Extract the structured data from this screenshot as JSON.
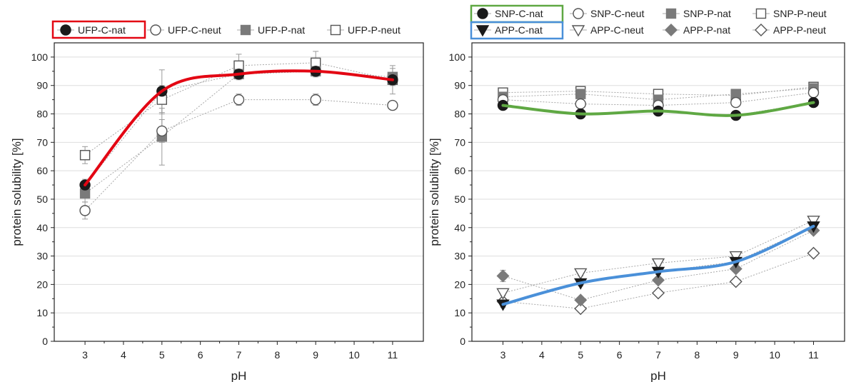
{
  "chart_data": [
    {
      "type": "line",
      "panel": "left",
      "xlabel": "pH",
      "ylabel": "protein solubility [%]",
      "xlim": [
        2.2,
        11.8
      ],
      "ylim": [
        0,
        105
      ],
      "xticks": [
        3,
        4,
        5,
        6,
        7,
        8,
        9,
        10,
        11
      ],
      "yticks": [
        0,
        10,
        20,
        30,
        40,
        50,
        60,
        70,
        80,
        90,
        100
      ],
      "grid": "horizontal",
      "legend_placement": "top",
      "x": [
        3,
        5,
        7,
        9,
        11
      ],
      "series": [
        {
          "name": "UFP-C-nat",
          "marker": "circle-filled",
          "color": "#1a1a1a",
          "highlight": "#e30613",
          "values": [
            55,
            88,
            94,
            95,
            92
          ],
          "errors": [
            2,
            7.5,
            1.5,
            1.5,
            2
          ]
        },
        {
          "name": "UFP-C-neut",
          "marker": "circle-open",
          "color": "#444444",
          "values": [
            46,
            74,
            85,
            85,
            83
          ],
          "errors": [
            3,
            4,
            2,
            2,
            1.5
          ]
        },
        {
          "name": "UFP-P-nat",
          "marker": "square-filled",
          "color": "#7a7a7a",
          "values": [
            52,
            72,
            94,
            95,
            93
          ],
          "errors": [
            3,
            10,
            2,
            2,
            3
          ]
        },
        {
          "name": "UFP-P-neut",
          "marker": "square-open",
          "color": "#9a9a9a",
          "values": [
            65.5,
            85,
            97,
            98,
            92
          ],
          "errors": [
            3,
            5,
            4,
            4,
            5
          ]
        }
      ],
      "highlight_curve": {
        "series": "UFP-C-nat",
        "color": "#e30613"
      }
    },
    {
      "type": "line",
      "panel": "right",
      "xlabel": "pH",
      "ylabel": "protein solubility [%]",
      "xlim": [
        2.2,
        11.8
      ],
      "ylim": [
        0,
        105
      ],
      "xticks": [
        3,
        4,
        5,
        6,
        7,
        8,
        9,
        10,
        11
      ],
      "yticks": [
        0,
        10,
        20,
        30,
        40,
        50,
        60,
        70,
        80,
        90,
        100
      ],
      "grid": "horizontal",
      "legend_placement": "top",
      "x": [
        3,
        5,
        7,
        9,
        11
      ],
      "series": [
        {
          "name": "SNP-C-nat",
          "marker": "circle-filled",
          "color": "#1a1a1a",
          "highlight": "#5fa843",
          "values": [
            83,
            80,
            81,
            79.5,
            84
          ],
          "errors": [
            1,
            1,
            1,
            1,
            1
          ]
        },
        {
          "name": "SNP-C-neut",
          "marker": "circle-open",
          "color": "#444444",
          "values": [
            85,
            83.5,
            83,
            84,
            87.5
          ],
          "errors": [
            1,
            1,
            1,
            1,
            1
          ]
        },
        {
          "name": "SNP-P-nat",
          "marker": "square-filled",
          "color": "#7a7a7a",
          "values": [
            86,
            87,
            85,
            87,
            89
          ],
          "errors": [
            1,
            1,
            1,
            1,
            1
          ]
        },
        {
          "name": "SNP-P-neut",
          "marker": "square-open",
          "color": "#9a9a9a",
          "values": [
            87.5,
            88,
            87,
            86.5,
            89.5
          ],
          "errors": [
            1,
            1,
            1,
            1,
            1
          ]
        },
        {
          "name": "APP-C-nat",
          "marker": "triangle-down-filled",
          "color": "#1a1a1a",
          "highlight": "#4a90d9",
          "values": [
            13,
            20.5,
            24.5,
            28,
            40.5
          ],
          "errors": [
            1,
            1,
            1,
            1,
            1
          ]
        },
        {
          "name": "APP-C-neut",
          "marker": "triangle-down-open",
          "color": "#444444",
          "values": [
            17,
            24,
            27.5,
            30,
            42.5
          ],
          "errors": [
            1,
            1,
            1,
            1,
            1
          ]
        },
        {
          "name": "APP-P-nat",
          "marker": "diamond-filled",
          "color": "#7a7a7a",
          "values": [
            23,
            14.5,
            21.5,
            25.5,
            39
          ],
          "errors": [
            2,
            1,
            1,
            1,
            1
          ]
        },
        {
          "name": "APP-P-neut",
          "marker": "diamond-open",
          "color": "#9a9a9a",
          "values": [
            14,
            11.5,
            17,
            21,
            31
          ],
          "errors": [
            1,
            1,
            1,
            1,
            1
          ]
        }
      ],
      "highlight_curves": [
        {
          "series": "SNP-C-nat",
          "color": "#5fa843"
        },
        {
          "series": "APP-C-nat",
          "color": "#4a90d9"
        }
      ]
    }
  ]
}
